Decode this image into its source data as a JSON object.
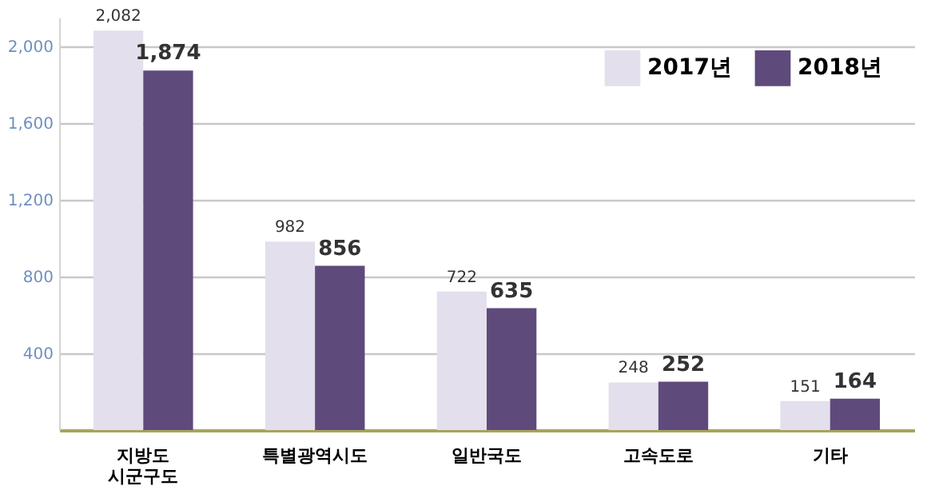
{
  "chart_data": {
    "type": "bar",
    "categories": [
      "지방도\n시군구도",
      "특별광역시도",
      "일반국도",
      "고속도로",
      "기타"
    ],
    "series": [
      {
        "name": "2017년",
        "color": "#e4dfec",
        "values": [
          2082,
          982,
          722,
          248,
          151
        ],
        "value_labels": [
          "2,082",
          "982",
          "722",
          "248",
          "151"
        ]
      },
      {
        "name": "2018년",
        "color": "#5f4a7c",
        "values": [
          1874,
          856,
          635,
          252,
          164
        ],
        "value_labels": [
          "1,874",
          "856",
          "635",
          "252",
          "164"
        ]
      }
    ],
    "ylim": [
      0,
      2150
    ],
    "yticks": [
      {
        "value": 400,
        "label": "400"
      },
      {
        "value": 800,
        "label": "800"
      },
      {
        "value": 1200,
        "label": "1,200"
      },
      {
        "value": 1600,
        "label": "1,600"
      },
      {
        "value": 2000,
        "label": "2,000"
      }
    ],
    "grid": "y",
    "legend": "top right"
  }
}
